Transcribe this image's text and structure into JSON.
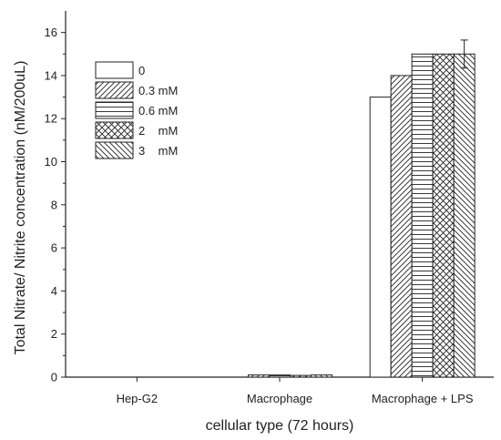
{
  "chart_data": {
    "type": "bar",
    "xlabel": "cellular type (72 hours)",
    "ylabel": "Total Nitrate/ Nitrite concentration (nM/200uL)",
    "ylim": [
      0,
      17
    ],
    "yticks": [
      0,
      2,
      4,
      6,
      8,
      10,
      12,
      14,
      16
    ],
    "categories": [
      "Hep-G2",
      "Macrophage",
      "Macrophage + LPS"
    ],
    "series": [
      {
        "name": "0",
        "pattern": "none",
        "values": [
          0,
          0,
          13
        ]
      },
      {
        "name": "0.3 mM",
        "pattern": "diagonal",
        "values": [
          0,
          0.1,
          14
        ]
      },
      {
        "name": "0.6 mM",
        "pattern": "horizontal",
        "values": [
          0,
          0.1,
          15
        ]
      },
      {
        "name": "2    mM",
        "pattern": "crosshatch",
        "values": [
          0,
          0.08,
          15
        ]
      },
      {
        "name": "3    mM",
        "pattern": "backdiag",
        "values": [
          0,
          0.1,
          15
        ]
      }
    ],
    "error_bars": [
      {
        "category": "Macrophage + LPS",
        "series": "3    mM",
        "value": 15,
        "error": 0.65
      }
    ],
    "grid": false,
    "legend_position": "top-left"
  }
}
